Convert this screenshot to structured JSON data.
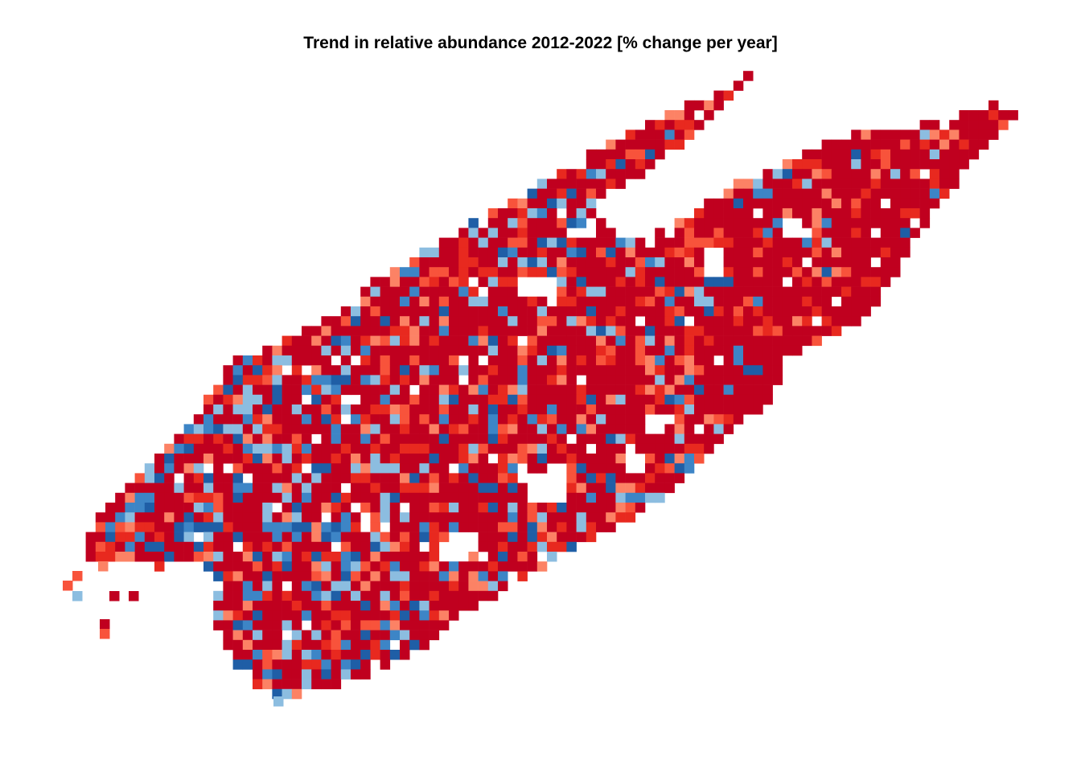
{
  "title": "Trend in relative abundance 2012-2022 [% change per year]",
  "palette": {
    "background": "#ffffff",
    "strong_decline": "#c0001f",
    "decline": "#e8291f",
    "mild_decline": "#f8533b",
    "weak_decline": "#fc8265",
    "weak_increase": "#8cbde0",
    "increase": "#3d85c6",
    "strong_increase": "#1f5ea6"
  },
  "legend_visible": false,
  "axes_visible": false
}
